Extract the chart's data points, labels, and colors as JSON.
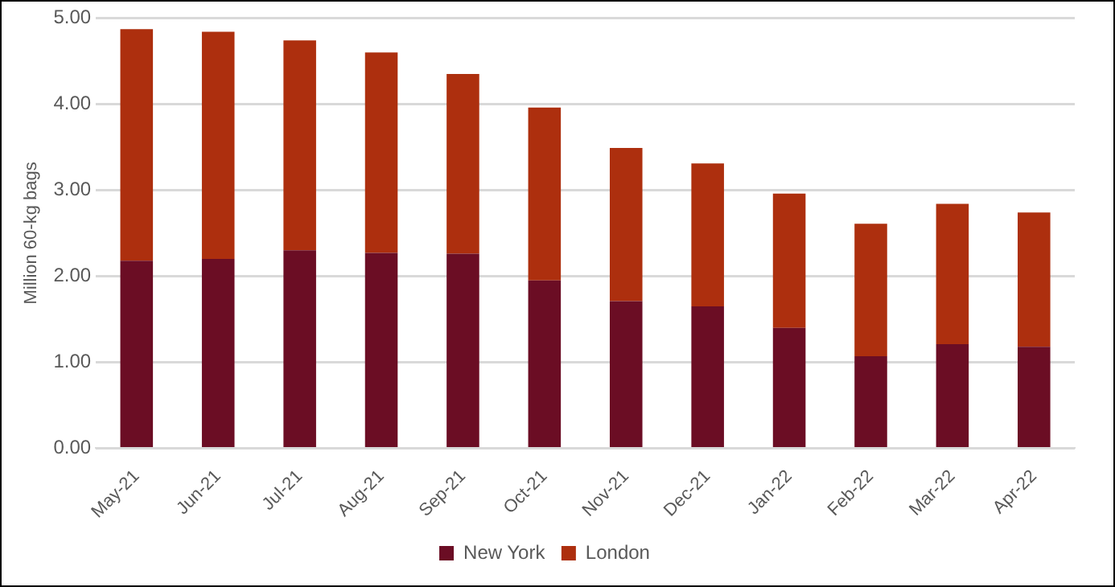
{
  "chart_data": {
    "type": "bar",
    "stacked": true,
    "ylabel": "Million 60-kg bags",
    "categories": [
      "May-21",
      "Jun-21",
      "Jul-21",
      "Aug-21",
      "Sep-21",
      "Oct-21",
      "Nov-21",
      "Dec-21",
      "Jan-22",
      "Feb-22",
      "Mar-22",
      "Apr-22"
    ],
    "series": [
      {
        "name": "New York",
        "color": "#6b0d24",
        "values": [
          2.18,
          2.2,
          2.3,
          2.27,
          2.26,
          1.95,
          1.71,
          1.65,
          1.4,
          1.07,
          1.21,
          1.18
        ]
      },
      {
        "name": "London",
        "color": "#ad2f0e",
        "values": [
          2.69,
          2.64,
          2.44,
          2.33,
          2.09,
          2.01,
          1.78,
          1.66,
          1.56,
          1.54,
          1.63,
          1.56
        ]
      }
    ],
    "ylim": [
      0,
      5
    ],
    "yticks": [
      {
        "value": 0,
        "label": "0.00"
      },
      {
        "value": 1,
        "label": "1.00"
      },
      {
        "value": 2,
        "label": "2.00"
      },
      {
        "value": 3,
        "label": "3.00"
      },
      {
        "value": 4,
        "label": "4.00"
      },
      {
        "value": 5,
        "label": "5.00"
      }
    ],
    "grid": "y",
    "legend": "bottom"
  }
}
